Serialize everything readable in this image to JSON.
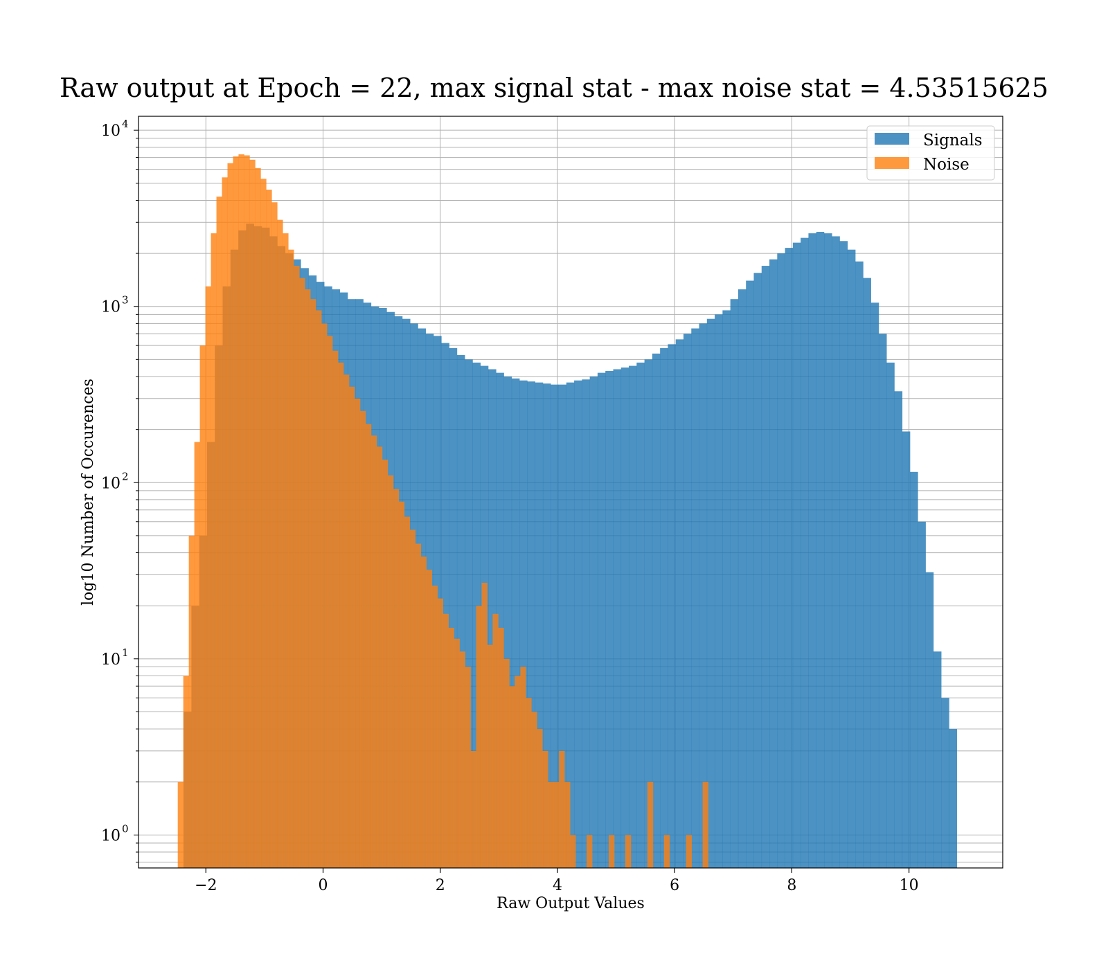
{
  "chart_data": {
    "type": "bar",
    "title": "Raw output at Epoch = 22, max signal stat - max noise stat = 4.53515625",
    "xlabel": "Raw Output Values",
    "ylabel": "log10 Number of Occurences",
    "xlim": [
      -3.15,
      11.6
    ],
    "ylim": [
      0.65,
      12000
    ],
    "yscale": "log",
    "grid": true,
    "legend_position": "top-right",
    "x_ticks": [
      -2,
      0,
      2,
      4,
      6,
      8,
      10
    ],
    "x_tick_labels": [
      "−2",
      "0",
      "2",
      "4",
      "6",
      "8",
      "10"
    ],
    "y_ticks": [
      {
        "value": 1,
        "base": "10",
        "exp": "0"
      },
      {
        "value": 10,
        "base": "10",
        "exp": "1"
      },
      {
        "value": 100,
        "base": "10",
        "exp": "2"
      },
      {
        "value": 1000,
        "base": "10",
        "exp": "3"
      },
      {
        "value": 10000,
        "base": "10",
        "exp": "4"
      }
    ],
    "series": [
      {
        "name": "Signals",
        "color": "#1f77b4",
        "opacity": 0.8,
        "bin_start": -2.38,
        "bin_width": 0.1333,
        "values": [
          5,
          20,
          50,
          170,
          600,
          1300,
          2100,
          2700,
          2950,
          2850,
          2800,
          2500,
          2200,
          2000,
          1850,
          1650,
          1500,
          1380,
          1300,
          1250,
          1200,
          1100,
          1100,
          1050,
          1000,
          980,
          930,
          880,
          850,
          800,
          750,
          700,
          680,
          620,
          580,
          530,
          500,
          480,
          460,
          440,
          420,
          400,
          390,
          380,
          375,
          370,
          365,
          360,
          360,
          370,
          380,
          385,
          400,
          420,
          430,
          440,
          450,
          460,
          480,
          500,
          540,
          580,
          610,
          650,
          700,
          750,
          800,
          850,
          900,
          950,
          1100,
          1250,
          1400,
          1550,
          1700,
          1850,
          2000,
          2150,
          2300,
          2450,
          2600,
          2650,
          2600,
          2500,
          2350,
          2100,
          1800,
          1450,
          1050,
          700,
          480,
          330,
          195,
          115,
          60,
          31,
          11,
          6,
          4
        ]
      },
      {
        "name": "Noise",
        "color": "#ff7f0e",
        "opacity": 0.8,
        "bin_start": -2.48,
        "bin_width": 0.0943,
        "values": [
          2,
          8,
          50,
          170,
          600,
          1300,
          2600,
          4200,
          5400,
          6500,
          7100,
          7300,
          7200,
          6800,
          6100,
          5300,
          4600,
          3900,
          3100,
          2600,
          2100,
          1700,
          1450,
          1250,
          1100,
          950,
          800,
          680,
          560,
          480,
          410,
          350,
          300,
          255,
          215,
          185,
          160,
          135,
          110,
          92,
          78,
          64,
          54,
          45,
          38,
          32,
          26,
          22,
          18,
          15,
          13,
          11,
          9,
          3,
          20,
          27,
          12,
          18,
          15,
          10,
          7,
          8,
          9,
          6,
          5,
          4,
          3,
          2,
          2,
          3,
          2,
          1,
          0,
          0,
          1,
          0,
          0,
          0,
          1,
          0,
          0,
          1,
          0,
          0,
          0,
          2,
          0,
          0,
          1,
          0,
          0,
          0,
          1,
          0,
          0,
          2
        ]
      }
    ]
  }
}
